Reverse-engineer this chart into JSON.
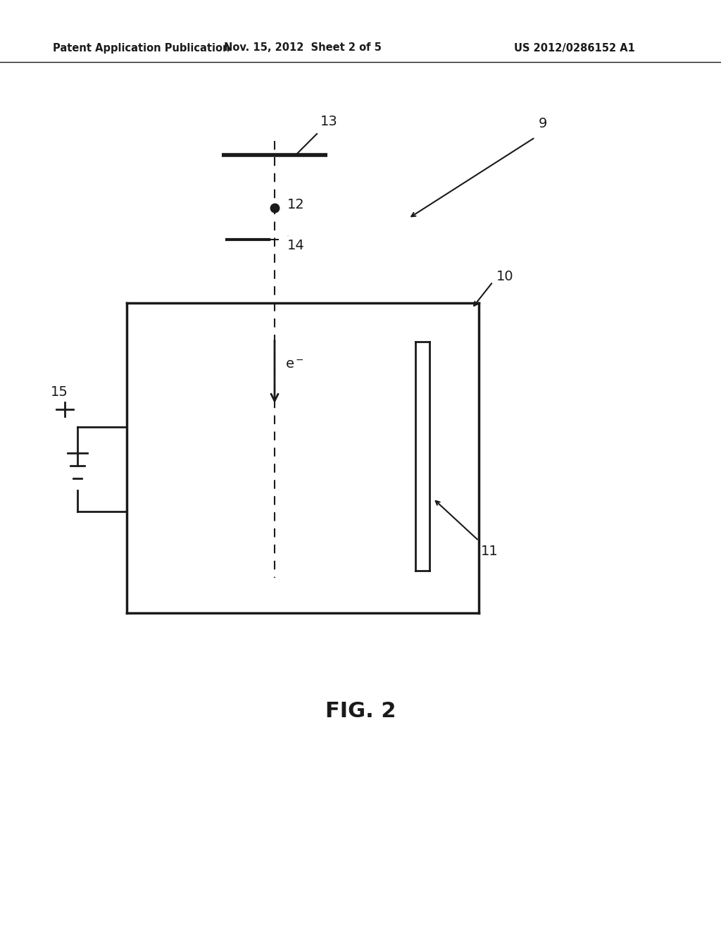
{
  "bg_color": "#ffffff",
  "header_left": "Patent Application Publication",
  "header_center": "Nov. 15, 2012  Sheet 2 of 5",
  "header_right": "US 2012/0286152 A1",
  "header_fontsize": 10.5,
  "fig_label": "FIG. 2",
  "fig_label_fontsize": 22,
  "label_9": "9",
  "label_10": "10",
  "label_11": "11",
  "label_12": "12",
  "label_13": "13",
  "label_14": "14",
  "label_15": "15"
}
